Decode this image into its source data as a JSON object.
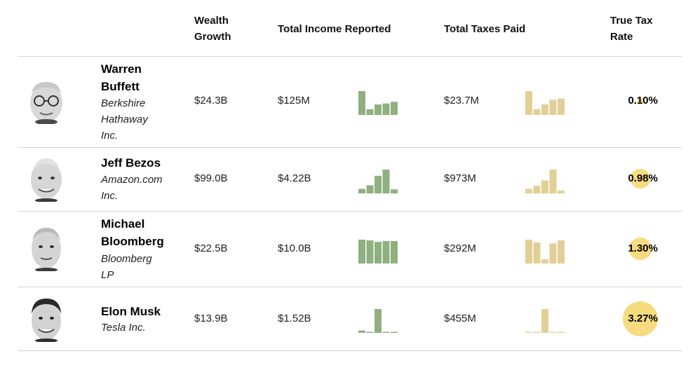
{
  "header": {
    "wealth_growth": [
      "Wealth",
      "Growth"
    ],
    "total_income": "Total Income Reported",
    "total_taxes": "Total Taxes Paid",
    "true_tax_rate": [
      "True Tax",
      "Rate"
    ]
  },
  "colors": {
    "income_bar": "#8fb07f",
    "tax_bar": "#e2cf96",
    "rate_bubble": "#f6dc7f",
    "divider": "#d4d4d4"
  },
  "rows": [
    {
      "name_lines": [
        "Warren",
        "Buffett"
      ],
      "company_lines": [
        "Berkshire",
        "Hathaway",
        "Inc."
      ],
      "wealth_growth": "$24.3B",
      "income": "$125M",
      "income_bars": [
        1.0,
        0.24,
        0.44,
        0.48,
        0.55
      ],
      "taxes": "$23.7M",
      "tax_bars": [
        1.0,
        0.24,
        0.44,
        0.64,
        0.69
      ],
      "rate": "0.10%",
      "rate_value": 0.1
    },
    {
      "name_lines": [
        "Jeff Bezos"
      ],
      "company_lines": [
        "Amazon.com",
        "Inc."
      ],
      "wealth_growth": "$99.0B",
      "income": "$4.22B",
      "income_bars": [
        0.19,
        0.34,
        0.74,
        1.0,
        0.17
      ],
      "taxes": "$973M",
      "tax_bars": [
        0.19,
        0.32,
        0.55,
        1.0,
        0.12
      ],
      "rate": "0.98%",
      "rate_value": 0.98
    },
    {
      "name_lines": [
        "Michael",
        "Bloomberg"
      ],
      "company_lines": [
        "Bloomberg",
        "LP"
      ],
      "wealth_growth": "$22.5B",
      "income": "$10.0B",
      "income_bars": [
        1.0,
        0.97,
        0.91,
        0.94,
        0.94
      ],
      "taxes": "$292M",
      "tax_bars": [
        1.0,
        0.88,
        0.18,
        0.84,
        0.97
      ],
      "rate": "1.30%",
      "rate_value": 1.3
    },
    {
      "name_lines": [
        "Elon Musk"
      ],
      "company_lines": [
        "Tesla Inc."
      ],
      "wealth_growth": "$13.9B",
      "income": "$1.52B",
      "income_bars": [
        0.1,
        0.02,
        1.0,
        0.02,
        0.02
      ],
      "taxes": "$455M",
      "tax_bars": [
        0.03,
        0.02,
        1.0,
        0.03,
        0.03
      ],
      "rate": "3.27%",
      "rate_value": 3.27
    }
  ]
}
